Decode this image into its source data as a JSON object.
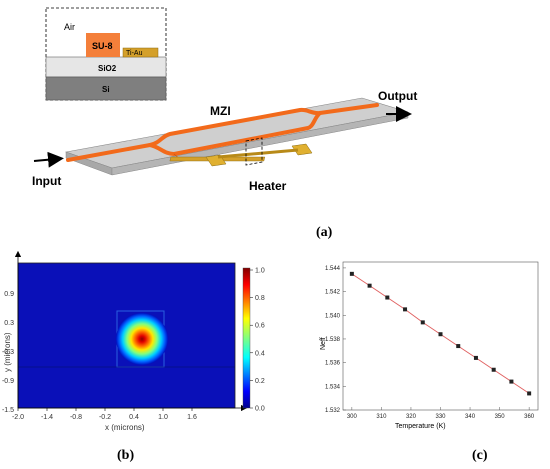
{
  "panel_a": {
    "inset": {
      "air": "Air",
      "su8": "SU-8",
      "tiau": "Ti-Au",
      "sio2": "SiO2",
      "si": "Si"
    },
    "mzi_label": "MZI",
    "output_label": "Output",
    "input_label": "Input",
    "heater_label": "Heater",
    "panel_label": "(a)"
  },
  "panel_b": {
    "ylabel": "y (microns)",
    "xlabel": "x (microns)",
    "xticks": [
      "-2.0",
      "-1.4",
      "-0.8",
      "-0.2",
      "0.4",
      "1.0",
      "1.6"
    ],
    "yticks": [
      "0.9",
      "0.3",
      "-0.3",
      "-0.9",
      "-1.5"
    ],
    "colorbar_ticks": [
      "1.0",
      "0.8",
      "0.6",
      "0.4",
      "0.2",
      "0.0"
    ],
    "panel_label": "(b)"
  },
  "chart_data": {
    "type": "line",
    "xlabel": "Temperature (K)",
    "ylabel": "Neff",
    "xlim": [
      297,
      363
    ],
    "ylim": [
      1.532,
      1.5445
    ],
    "xticks": [
      300,
      310,
      320,
      330,
      340,
      350,
      360
    ],
    "yticks": [
      1.532,
      1.534,
      1.536,
      1.538,
      1.54,
      1.542,
      1.544
    ],
    "ytick_labels": [
      "1.532",
      "1.534",
      "1.536",
      "1.538",
      "1.540",
      "1.542",
      "1.544"
    ],
    "series": [
      {
        "x": [
          300,
          306,
          312,
          318,
          324,
          330,
          336,
          342,
          348,
          354,
          360
        ],
        "y": [
          1.5435,
          1.5425,
          1.5415,
          1.5405,
          1.5394,
          1.5384,
          1.5374,
          1.5364,
          1.5354,
          1.5344,
          1.5334
        ],
        "marker_color": "#222222",
        "line_color": "#e06060"
      }
    ],
    "grid": false,
    "panel_label": "(c)"
  }
}
